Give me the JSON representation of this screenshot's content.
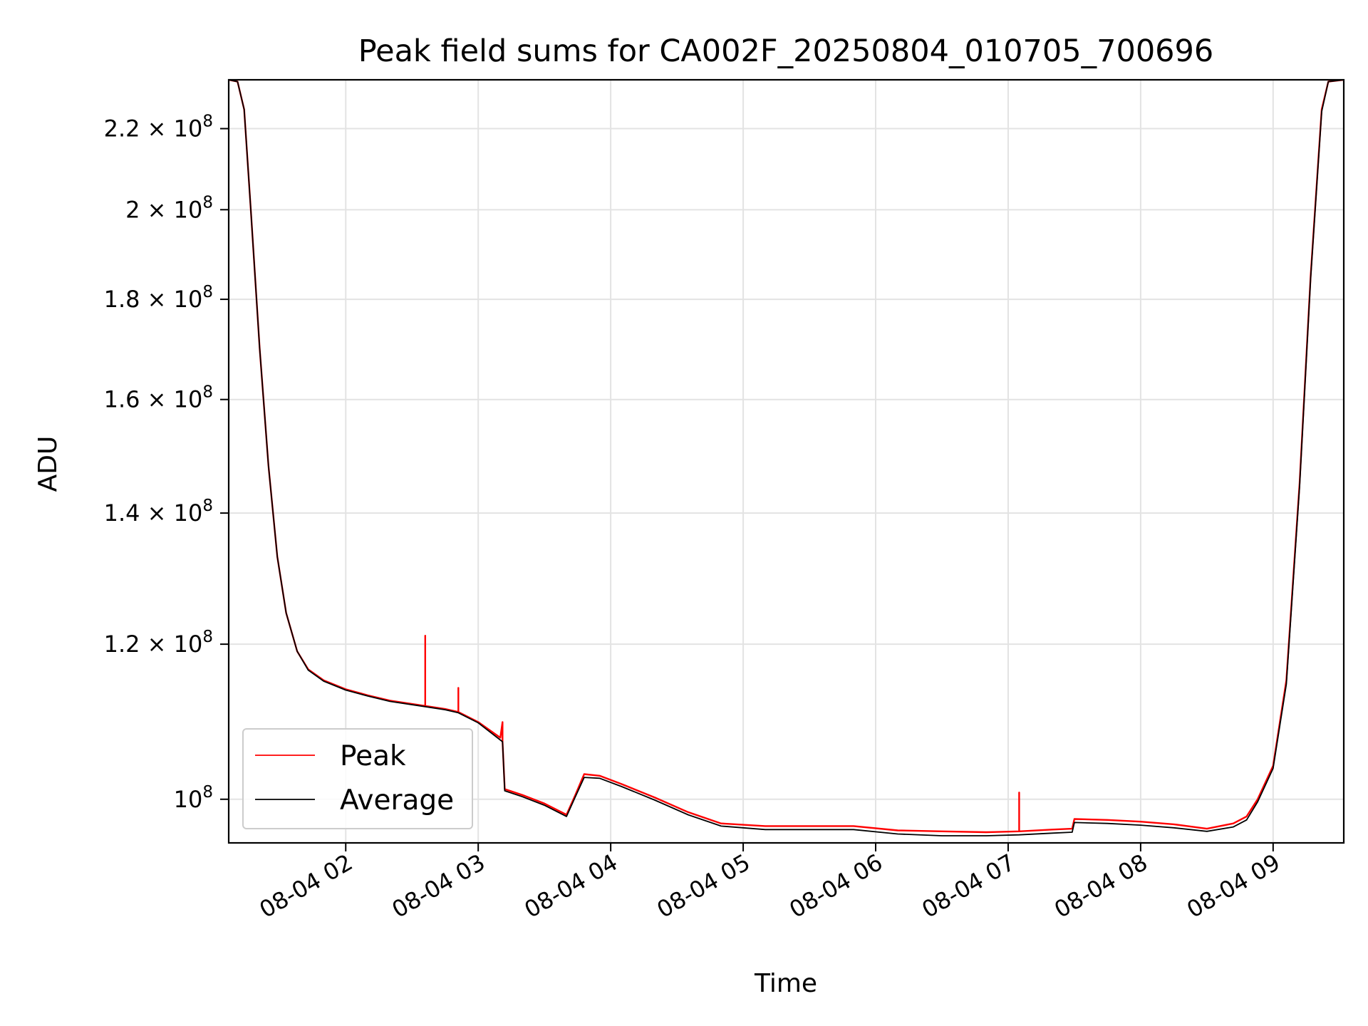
{
  "chart_data": {
    "type": "line",
    "title": "Peak field sums for CA002F_20250804_010705_700696",
    "xlabel": "Time",
    "ylabel": "ADU",
    "y_scale": "log",
    "grid": true,
    "legend_position": "lower-left",
    "xlim": [
      "2025-08-04 01:07",
      "2025-08-04 09:32"
    ],
    "ylim": [
      95000000,
      233000000
    ],
    "x_ticks": [
      {
        "value": "2025-08-04 02:00",
        "label": "08-04 02"
      },
      {
        "value": "2025-08-04 03:00",
        "label": "08-04 03"
      },
      {
        "value": "2025-08-04 04:00",
        "label": "08-04 04"
      },
      {
        "value": "2025-08-04 05:00",
        "label": "08-04 05"
      },
      {
        "value": "2025-08-04 06:00",
        "label": "08-04 06"
      },
      {
        "value": "2025-08-04 07:00",
        "label": "08-04 07"
      },
      {
        "value": "2025-08-04 08:00",
        "label": "08-04 08"
      },
      {
        "value": "2025-08-04 09:00",
        "label": "08-04 09"
      }
    ],
    "y_ticks": [
      {
        "value": 100000000,
        "mantissa": "10",
        "exponent": "8"
      },
      {
        "value": 120000000,
        "mantissa": "1.2 × 10",
        "exponent": "8"
      },
      {
        "value": 140000000,
        "mantissa": "1.4 × 10",
        "exponent": "8"
      },
      {
        "value": 160000000,
        "mantissa": "1.6 × 10",
        "exponent": "8"
      },
      {
        "value": 180000000,
        "mantissa": "1.8 × 10",
        "exponent": "8"
      },
      {
        "value": 200000000,
        "mantissa": "2 × 10",
        "exponent": "8"
      },
      {
        "value": 220000000,
        "mantissa": "2.2 × 10",
        "exponent": "8"
      }
    ],
    "series": [
      {
        "name": "Peak",
        "color": "#ff0000",
        "points": [
          [
            "2025-08-04 01:07",
            233000000
          ],
          [
            "2025-08-04 01:11",
            232500000
          ],
          [
            "2025-08-04 01:14",
            225000000
          ],
          [
            "2025-08-04 01:17",
            200000000
          ],
          [
            "2025-08-04 01:21",
            170000000
          ],
          [
            "2025-08-04 01:25",
            148000000
          ],
          [
            "2025-08-04 01:29",
            133000000
          ],
          [
            "2025-08-04 01:33",
            124500000
          ],
          [
            "2025-08-04 01:38",
            119000000
          ],
          [
            "2025-08-04 01:43",
            116500000
          ],
          [
            "2025-08-04 01:50",
            115000000
          ],
          [
            "2025-08-04 02:00",
            113800000
          ],
          [
            "2025-08-04 02:10",
            113000000
          ],
          [
            "2025-08-04 02:20",
            112300000
          ],
          [
            "2025-08-04 02:36",
            111600000
          ],
          [
            "2025-08-04 02:36",
            121200000
          ],
          [
            "2025-08-04 02:36",
            111600000
          ],
          [
            "2025-08-04 02:45",
            111200000
          ],
          [
            "2025-08-04 02:51",
            110800000
          ],
          [
            "2025-08-04 02:51",
            114000000
          ],
          [
            "2025-08-04 02:51",
            110800000
          ],
          [
            "2025-08-04 03:00",
            109500000
          ],
          [
            "2025-08-04 03:10",
            107500000
          ],
          [
            "2025-08-04 03:11",
            109500000
          ],
          [
            "2025-08-04 03:11",
            107000000
          ],
          [
            "2025-08-04 03:12",
            101200000
          ],
          [
            "2025-08-04 03:20",
            100500000
          ],
          [
            "2025-08-04 03:30",
            99500000
          ],
          [
            "2025-08-04 03:40",
            98200000
          ],
          [
            "2025-08-04 03:44",
            100500000
          ],
          [
            "2025-08-04 03:48",
            103000000
          ],
          [
            "2025-08-04 03:55",
            102800000
          ],
          [
            "2025-08-04 04:05",
            101800000
          ],
          [
            "2025-08-04 04:20",
            100200000
          ],
          [
            "2025-08-04 04:35",
            98500000
          ],
          [
            "2025-08-04 04:50",
            97200000
          ],
          [
            "2025-08-04 05:10",
            96900000
          ],
          [
            "2025-08-04 05:30",
            96900000
          ],
          [
            "2025-08-04 05:50",
            96900000
          ],
          [
            "2025-08-04 06:10",
            96400000
          ],
          [
            "2025-08-04 06:30",
            96300000
          ],
          [
            "2025-08-04 06:50",
            96200000
          ],
          [
            "2025-08-04 07:05",
            96300000
          ],
          [
            "2025-08-04 07:05",
            100800000
          ],
          [
            "2025-08-04 07:05",
            96300000
          ],
          [
            "2025-08-04 07:20",
            96500000
          ],
          [
            "2025-08-04 07:29",
            96600000
          ],
          [
            "2025-08-04 07:30",
            97700000
          ],
          [
            "2025-08-04 07:45",
            97600000
          ],
          [
            "2025-08-04 08:00",
            97400000
          ],
          [
            "2025-08-04 08:15",
            97100000
          ],
          [
            "2025-08-04 08:30",
            96600000
          ],
          [
            "2025-08-04 08:42",
            97200000
          ],
          [
            "2025-08-04 08:48",
            98000000
          ],
          [
            "2025-08-04 08:53",
            100000000
          ],
          [
            "2025-08-04 09:00",
            104000000
          ],
          [
            "2025-08-04 09:06",
            115000000
          ],
          [
            "2025-08-04 09:12",
            145000000
          ],
          [
            "2025-08-04 09:17",
            185000000
          ],
          [
            "2025-08-04 09:22",
            225000000
          ],
          [
            "2025-08-04 09:25",
            232500000
          ],
          [
            "2025-08-04 09:32",
            233000000
          ]
        ]
      },
      {
        "name": "Average",
        "color": "#000000",
        "points": [
          [
            "2025-08-04 01:07",
            233000000
          ],
          [
            "2025-08-04 01:11",
            232500000
          ],
          [
            "2025-08-04 01:14",
            225000000
          ],
          [
            "2025-08-04 01:17",
            200000000
          ],
          [
            "2025-08-04 01:21",
            170000000
          ],
          [
            "2025-08-04 01:25",
            148000000
          ],
          [
            "2025-08-04 01:29",
            133000000
          ],
          [
            "2025-08-04 01:33",
            124500000
          ],
          [
            "2025-08-04 01:38",
            119000000
          ],
          [
            "2025-08-04 01:43",
            116400000
          ],
          [
            "2025-08-04 01:50",
            114900000
          ],
          [
            "2025-08-04 02:00",
            113700000
          ],
          [
            "2025-08-04 02:10",
            112900000
          ],
          [
            "2025-08-04 02:20",
            112200000
          ],
          [
            "2025-08-04 02:36",
            111500000
          ],
          [
            "2025-08-04 02:45",
            111100000
          ],
          [
            "2025-08-04 02:51",
            110700000
          ],
          [
            "2025-08-04 03:00",
            109400000
          ],
          [
            "2025-08-04 03:11",
            107000000
          ],
          [
            "2025-08-04 03:12",
            101000000
          ],
          [
            "2025-08-04 03:20",
            100300000
          ],
          [
            "2025-08-04 03:30",
            99300000
          ],
          [
            "2025-08-04 03:40",
            98000000
          ],
          [
            "2025-08-04 03:44",
            100300000
          ],
          [
            "2025-08-04 03:48",
            102600000
          ],
          [
            "2025-08-04 03:55",
            102500000
          ],
          [
            "2025-08-04 04:05",
            101500000
          ],
          [
            "2025-08-04 04:20",
            99900000
          ],
          [
            "2025-08-04 04:35",
            98200000
          ],
          [
            "2025-08-04 04:50",
            96900000
          ],
          [
            "2025-08-04 05:10",
            96500000
          ],
          [
            "2025-08-04 05:30",
            96500000
          ],
          [
            "2025-08-04 05:50",
            96500000
          ],
          [
            "2025-08-04 06:10",
            96000000
          ],
          [
            "2025-08-04 06:30",
            95800000
          ],
          [
            "2025-08-04 06:50",
            95800000
          ],
          [
            "2025-08-04 07:05",
            95900000
          ],
          [
            "2025-08-04 07:20",
            96100000
          ],
          [
            "2025-08-04 07:29",
            96200000
          ],
          [
            "2025-08-04 07:30",
            97300000
          ],
          [
            "2025-08-04 07:45",
            97200000
          ],
          [
            "2025-08-04 08:00",
            97000000
          ],
          [
            "2025-08-04 08:15",
            96700000
          ],
          [
            "2025-08-04 08:30",
            96300000
          ],
          [
            "2025-08-04 08:42",
            96800000
          ],
          [
            "2025-08-04 08:48",
            97600000
          ],
          [
            "2025-08-04 08:53",
            99700000
          ],
          [
            "2025-08-04 09:00",
            103700000
          ],
          [
            "2025-08-04 09:06",
            114500000
          ],
          [
            "2025-08-04 09:12",
            144500000
          ],
          [
            "2025-08-04 09:17",
            184500000
          ],
          [
            "2025-08-04 09:22",
            224500000
          ],
          [
            "2025-08-04 09:25",
            232500000
          ],
          [
            "2025-08-04 09:32",
            233000000
          ]
        ]
      }
    ]
  }
}
